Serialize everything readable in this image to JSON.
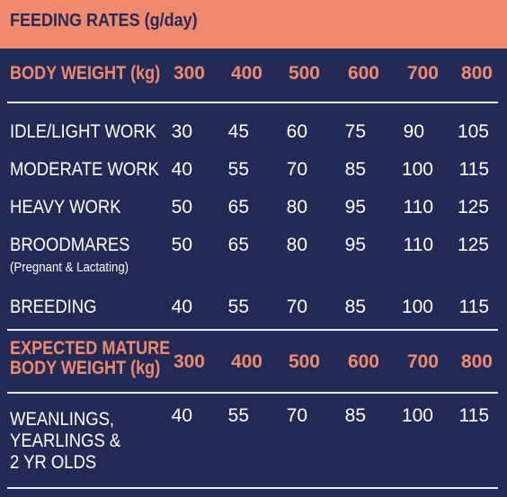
{
  "title": "FEEDING RATES (g/day)",
  "header1": {
    "label": "BODY WEIGHT (kg)",
    "values": [
      "300",
      "400",
      "500",
      "600",
      "700",
      "800"
    ]
  },
  "rows1": [
    {
      "label": "IDLE/LIGHT WORK",
      "values": [
        "30",
        "45",
        "60",
        "75",
        "90",
        "105"
      ]
    },
    {
      "label": "MODERATE WORK",
      "values": [
        "40",
        "55",
        "70",
        "85",
        "100",
        "115"
      ]
    },
    {
      "label": "HEAVY WORK",
      "values": [
        "50",
        "65",
        "80",
        "95",
        "110",
        "125"
      ]
    },
    {
      "label": "BROODMARES",
      "sublabel": "(Pregnant & Lactating)",
      "values": [
        "50",
        "65",
        "80",
        "95",
        "110",
        "125"
      ]
    },
    {
      "label": "BREEDING",
      "values": [
        "40",
        "55",
        "70",
        "85",
        "100",
        "115"
      ]
    }
  ],
  "header2": {
    "label_line1": "EXPECTED MATURE",
    "label_line2": "BODY WEIGHT (kg)",
    "values": [
      "300",
      "400",
      "500",
      "600",
      "700",
      "800"
    ]
  },
  "rows2": [
    {
      "label_line1": "WEANLINGS,",
      "label_line2": "YEARLINGS &",
      "label_line3": "2 YR OLDS",
      "values": [
        "40",
        "55",
        "70",
        "85",
        "100",
        "115"
      ]
    }
  ],
  "colors": {
    "background": "#232a55",
    "accent": "#ef8a6f",
    "text": "#ffffff",
    "rule": "#e9e9ee"
  }
}
